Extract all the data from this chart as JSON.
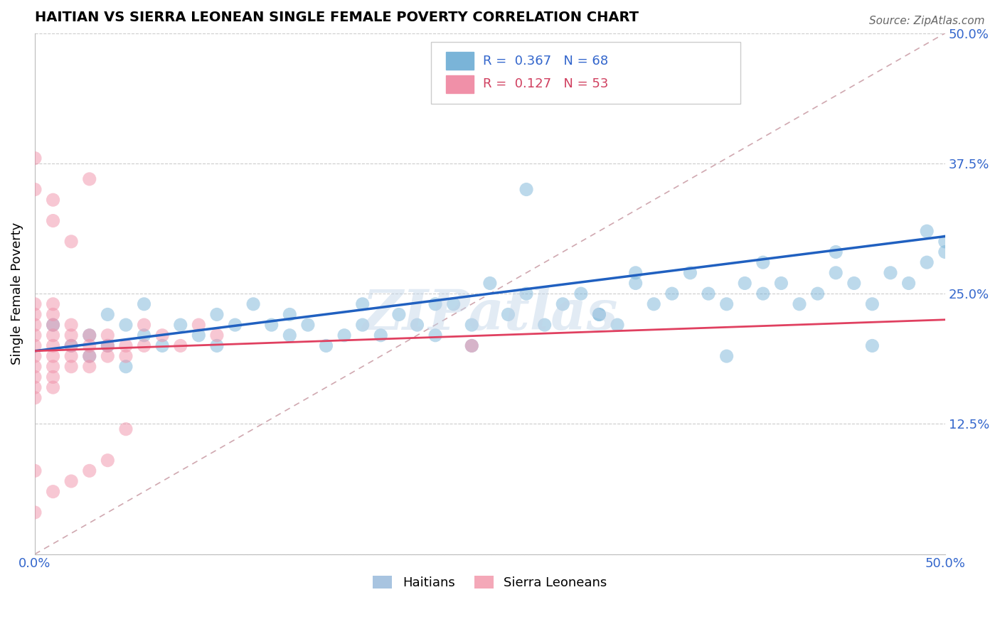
{
  "title": "HAITIAN VS SIERRA LEONEAN SINGLE FEMALE POVERTY CORRELATION CHART",
  "source": "Source: ZipAtlas.com",
  "ylabel": "Single Female Poverty",
  "xlim": [
    0.0,
    0.5
  ],
  "ylim": [
    0.0,
    0.5
  ],
  "ytick_labels": [
    "",
    "12.5%",
    "25.0%",
    "37.5%",
    "50.0%"
  ],
  "xtick_labels": [
    "0.0%",
    "",
    "",
    "",
    "",
    "50.0%"
  ],
  "bottom_legend": [
    "Haitians",
    "Sierra Leoneans"
  ],
  "bottom_legend_colors": [
    "#a8c4e0",
    "#f4a8b8"
  ],
  "watermark": "ZIPatlas",
  "haitian_color": "#7ab4d8",
  "sierraleone_color": "#f090a8",
  "haitian_line_color": "#2060c0",
  "sierraleone_line_color": "#e04060",
  "haitian_x": [
    0.01,
    0.02,
    0.03,
    0.03,
    0.04,
    0.04,
    0.05,
    0.05,
    0.06,
    0.06,
    0.07,
    0.08,
    0.09,
    0.1,
    0.1,
    0.11,
    0.12,
    0.13,
    0.14,
    0.14,
    0.15,
    0.16,
    0.17,
    0.18,
    0.18,
    0.19,
    0.2,
    0.21,
    0.22,
    0.22,
    0.23,
    0.24,
    0.24,
    0.25,
    0.26,
    0.27,
    0.28,
    0.29,
    0.3,
    0.31,
    0.32,
    0.33,
    0.34,
    0.35,
    0.36,
    0.37,
    0.38,
    0.39,
    0.4,
    0.4,
    0.41,
    0.42,
    0.43,
    0.44,
    0.45,
    0.46,
    0.47,
    0.48,
    0.49,
    0.5,
    0.27,
    0.31,
    0.33,
    0.38,
    0.44,
    0.46,
    0.49,
    0.5
  ],
  "haitian_y": [
    0.22,
    0.2,
    0.21,
    0.19,
    0.23,
    0.2,
    0.22,
    0.18,
    0.21,
    0.24,
    0.2,
    0.22,
    0.21,
    0.23,
    0.2,
    0.22,
    0.24,
    0.22,
    0.23,
    0.21,
    0.22,
    0.2,
    0.21,
    0.24,
    0.22,
    0.21,
    0.23,
    0.22,
    0.24,
    0.21,
    0.24,
    0.22,
    0.2,
    0.26,
    0.23,
    0.25,
    0.22,
    0.24,
    0.25,
    0.23,
    0.22,
    0.26,
    0.24,
    0.25,
    0.27,
    0.25,
    0.24,
    0.26,
    0.25,
    0.28,
    0.26,
    0.24,
    0.25,
    0.27,
    0.26,
    0.24,
    0.27,
    0.26,
    0.28,
    0.29,
    0.35,
    0.23,
    0.27,
    0.19,
    0.29,
    0.2,
    0.31,
    0.3
  ],
  "sierraleone_x": [
    0.0,
    0.0,
    0.0,
    0.0,
    0.0,
    0.0,
    0.0,
    0.0,
    0.0,
    0.0,
    0.01,
    0.01,
    0.01,
    0.01,
    0.01,
    0.01,
    0.01,
    0.01,
    0.01,
    0.02,
    0.02,
    0.02,
    0.02,
    0.02,
    0.03,
    0.03,
    0.03,
    0.03,
    0.04,
    0.04,
    0.04,
    0.05,
    0.05,
    0.06,
    0.06,
    0.07,
    0.08,
    0.09,
    0.1,
    0.0,
    0.01,
    0.02,
    0.03,
    0.04,
    0.0,
    0.0,
    0.01,
    0.01,
    0.02,
    0.03,
    0.05,
    0.24,
    0.0
  ],
  "sierraleone_y": [
    0.19,
    0.2,
    0.21,
    0.22,
    0.18,
    0.17,
    0.23,
    0.16,
    0.24,
    0.15,
    0.19,
    0.2,
    0.21,
    0.18,
    0.22,
    0.17,
    0.16,
    0.23,
    0.24,
    0.19,
    0.2,
    0.21,
    0.18,
    0.22,
    0.2,
    0.19,
    0.21,
    0.18,
    0.19,
    0.21,
    0.2,
    0.2,
    0.19,
    0.22,
    0.2,
    0.21,
    0.2,
    0.22,
    0.21,
    0.08,
    0.06,
    0.07,
    0.08,
    0.09,
    0.38,
    0.35,
    0.32,
    0.34,
    0.3,
    0.36,
    0.12,
    0.2,
    0.04
  ]
}
